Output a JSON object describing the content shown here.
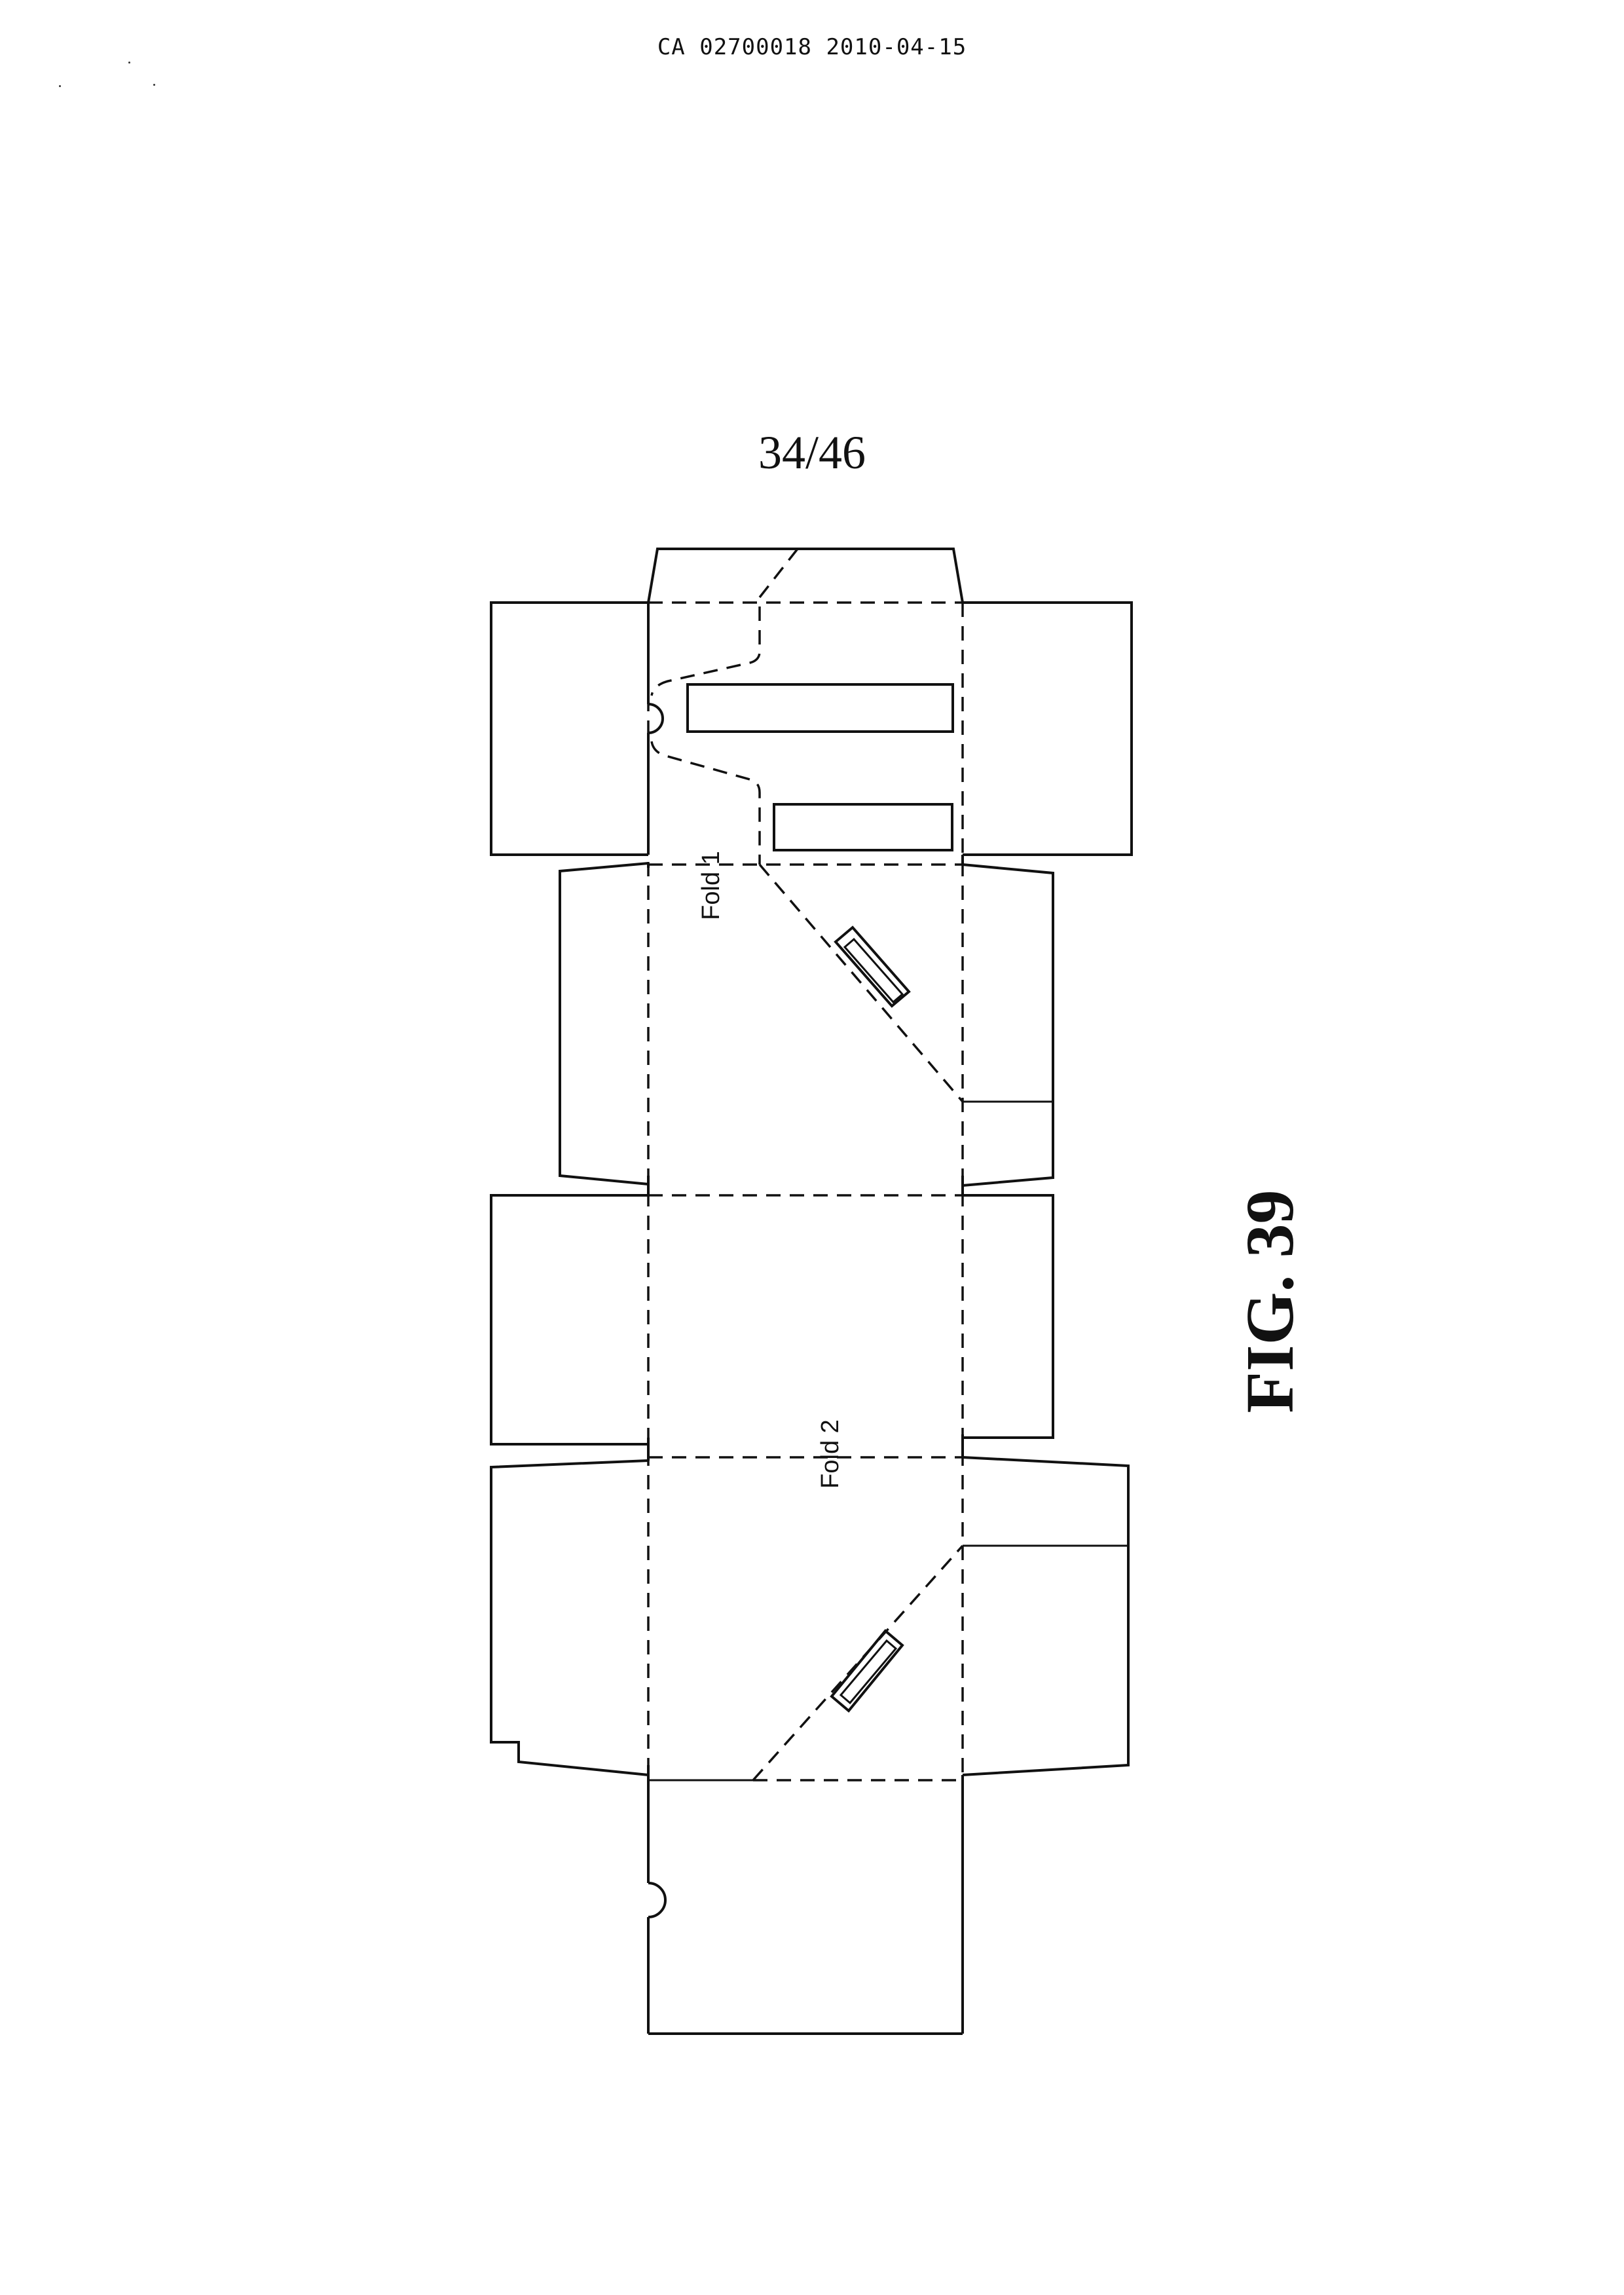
{
  "document": {
    "header": "CA 02700018 2010-04-15",
    "page_number": "34/46",
    "figure_label": "FIG. 39"
  },
  "drawing": {
    "labels": {
      "fold1": "Fold 1",
      "fold2": "Fold 2"
    },
    "line_color": "#111111"
  }
}
